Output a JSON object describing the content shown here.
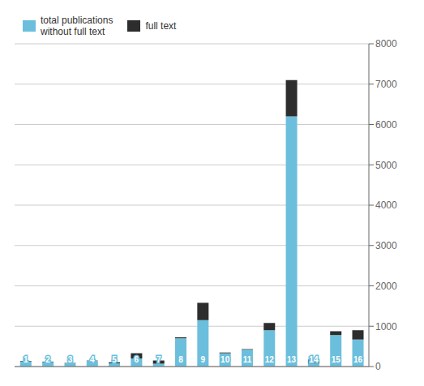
{
  "chart_data": {
    "type": "bar",
    "stacked": true,
    "categories": [
      "1",
      "2",
      "3",
      "4",
      "5",
      "6",
      "7",
      "8",
      "9",
      "10",
      "11",
      "12",
      "13",
      "14",
      "15",
      "16"
    ],
    "series": [
      {
        "name": "total publications\nwithout full text",
        "color": "#6bbfdc",
        "values": [
          120,
          110,
          80,
          140,
          80,
          200,
          70,
          700,
          1150,
          330,
          420,
          900,
          6200,
          75,
          780,
          670
        ]
      },
      {
        "name": "full text",
        "color": "#2d2d2d",
        "values": [
          15,
          12,
          8,
          8,
          25,
          130,
          80,
          25,
          430,
          18,
          12,
          180,
          900,
          100,
          95,
          230
        ]
      }
    ],
    "ylim": [
      0,
      8000
    ],
    "yticks": [
      0,
      1000,
      2000,
      3000,
      4000,
      5000,
      6000,
      7000,
      8000
    ],
    "grid": true,
    "legend": "upper left",
    "tick_labels": "y"
  }
}
